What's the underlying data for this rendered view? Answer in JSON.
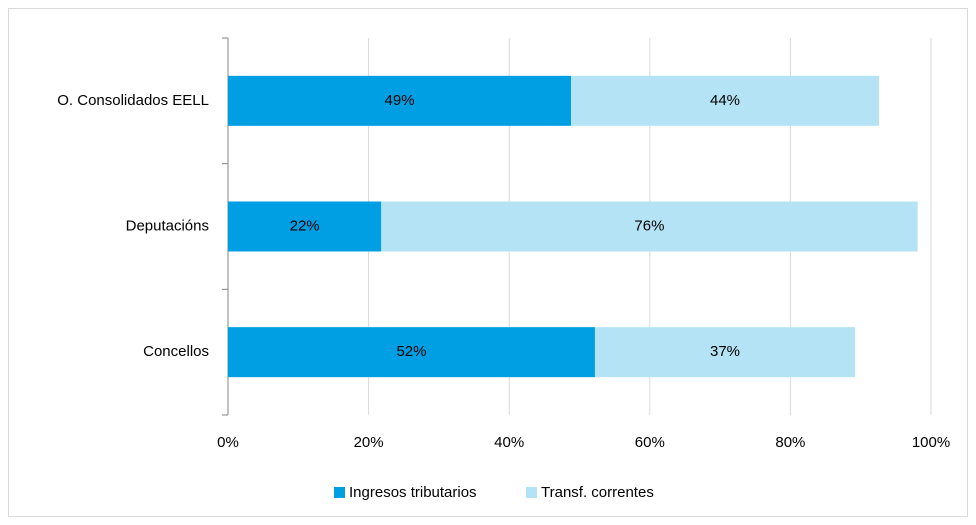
{
  "chart_data": {
    "type": "stacked-bar-horizontal",
    "categories": [
      "O. Consolidados EELL",
      "Deputacións",
      "Concellos"
    ],
    "series": [
      {
        "name": "Ingresos tributarios",
        "color": "#009fe3",
        "values": [
          48.8,
          21.8,
          52.2
        ],
        "value_labels": [
          "49%",
          "22%",
          "52%"
        ]
      },
      {
        "name": "Transf. correntes",
        "color": "#b5e3f6",
        "values": [
          43.8,
          76.3,
          37.0
        ],
        "value_labels": [
          "44%",
          "76%",
          "37%"
        ]
      }
    ],
    "xlim": [
      0,
      100
    ],
    "xticks": [
      {
        "value": 0,
        "label": "0%"
      },
      {
        "value": 20,
        "label": "20%"
      },
      {
        "value": 40,
        "label": "40%"
      },
      {
        "value": 60,
        "label": "60%"
      },
      {
        "value": 80,
        "label": "80%"
      },
      {
        "value": 100,
        "label": "100%"
      }
    ],
    "grid": true,
    "legend": "bottom"
  }
}
